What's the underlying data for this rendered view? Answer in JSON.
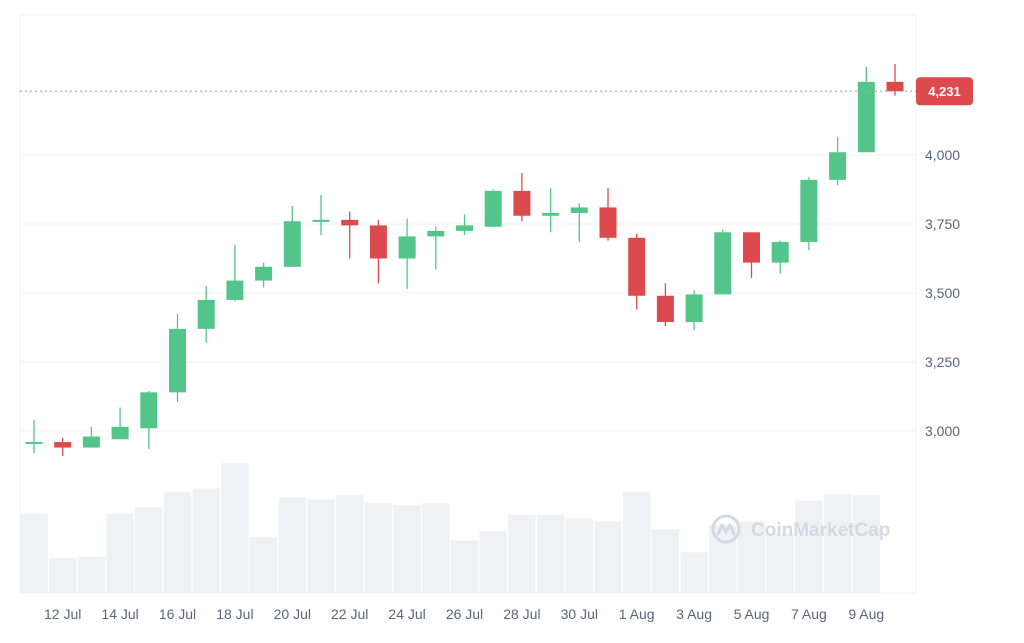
{
  "chart_data": {
    "type": "candlestick",
    "x_tick_labels": [
      "12 Jul",
      "14 Jul",
      "16 Jul",
      "18 Jul",
      "20 Jul",
      "22 Jul",
      "24 Jul",
      "26 Jul",
      "28 Jul",
      "30 Jul",
      "1 Aug",
      "3 Aug",
      "5 Aug",
      "7 Aug",
      "9 Aug"
    ],
    "y_ticks": [
      3000,
      3250,
      3500,
      3750,
      4000
    ],
    "y_tick_labels": [
      "3,000",
      "3,250",
      "3,500",
      "3,750",
      "4,000"
    ],
    "ylim": [
      2800,
      4530
    ],
    "current_price": 4231,
    "current_price_label": "4,231",
    "grid": true,
    "candles": [
      {
        "date": "11 Jul",
        "open": 2955,
        "high": 3040,
        "low": 2920,
        "close": 2960
      },
      {
        "date": "12 Jul",
        "open": 2960,
        "high": 2975,
        "low": 2910,
        "close": 2940
      },
      {
        "date": "13 Jul",
        "open": 2940,
        "high": 3015,
        "low": 2940,
        "close": 2980
      },
      {
        "date": "14 Jul",
        "open": 2970,
        "high": 3085,
        "low": 2970,
        "close": 3015
      },
      {
        "date": "15 Jul",
        "open": 3010,
        "high": 3145,
        "low": 2935,
        "close": 3140
      },
      {
        "date": "16 Jul",
        "open": 3140,
        "high": 3425,
        "low": 3105,
        "close": 3370
      },
      {
        "date": "17 Jul",
        "open": 3370,
        "high": 3525,
        "low": 3320,
        "close": 3475
      },
      {
        "date": "18 Jul",
        "open": 3475,
        "high": 3675,
        "low": 3470,
        "close": 3545
      },
      {
        "date": "19 Jul",
        "open": 3545,
        "high": 3610,
        "low": 3520,
        "close": 3595
      },
      {
        "date": "20 Jul",
        "open": 3595,
        "high": 3815,
        "low": 3595,
        "close": 3760
      },
      {
        "date": "21 Jul",
        "open": 3760,
        "high": 3855,
        "low": 3710,
        "close": 3765
      },
      {
        "date": "22 Jul",
        "open": 3765,
        "high": 3795,
        "low": 3625,
        "close": 3745
      },
      {
        "date": "23 Jul",
        "open": 3745,
        "high": 3765,
        "low": 3535,
        "close": 3625
      },
      {
        "date": "24 Jul",
        "open": 3625,
        "high": 3770,
        "low": 3515,
        "close": 3705
      },
      {
        "date": "25 Jul",
        "open": 3705,
        "high": 3740,
        "low": 3585,
        "close": 3725
      },
      {
        "date": "26 Jul",
        "open": 3725,
        "high": 3785,
        "low": 3710,
        "close": 3745
      },
      {
        "date": "27 Jul",
        "open": 3740,
        "high": 3875,
        "low": 3740,
        "close": 3870
      },
      {
        "date": "28 Jul",
        "open": 3870,
        "high": 3935,
        "low": 3760,
        "close": 3780
      },
      {
        "date": "29 Jul",
        "open": 3780,
        "high": 3880,
        "low": 3720,
        "close": 3790
      },
      {
        "date": "30 Jul",
        "open": 3790,
        "high": 3825,
        "low": 3685,
        "close": 3810
      },
      {
        "date": "31 Jul",
        "open": 3810,
        "high": 3880,
        "low": 3690,
        "close": 3700
      },
      {
        "date": "1 Aug",
        "open": 3700,
        "high": 3715,
        "low": 3440,
        "close": 3490
      },
      {
        "date": "2 Aug",
        "open": 3490,
        "high": 3535,
        "low": 3380,
        "close": 3395
      },
      {
        "date": "3 Aug",
        "open": 3395,
        "high": 3510,
        "low": 3365,
        "close": 3495
      },
      {
        "date": "4 Aug",
        "open": 3495,
        "high": 3730,
        "low": 3495,
        "close": 3720
      },
      {
        "date": "5 Aug",
        "open": 3720,
        "high": 3720,
        "low": 3555,
        "close": 3610
      },
      {
        "date": "6 Aug",
        "open": 3610,
        "high": 3690,
        "low": 3570,
        "close": 3685
      },
      {
        "date": "7 Aug",
        "open": 3685,
        "high": 3920,
        "low": 3655,
        "close": 3910
      },
      {
        "date": "8 Aug",
        "open": 3910,
        "high": 4065,
        "low": 3890,
        "close": 4010
      },
      {
        "date": "9 Aug",
        "open": 4010,
        "high": 4320,
        "low": 4010,
        "close": 4265
      },
      {
        "date": "10 Aug",
        "open": 4265,
        "high": 4330,
        "low": 4215,
        "close": 4231
      }
    ],
    "volume_relative": [
      0.72,
      0.32,
      0.33,
      0.72,
      0.78,
      0.92,
      0.95,
      1.18,
      0.51,
      0.87,
      0.85,
      0.89,
      0.82,
      0.8,
      0.82,
      0.48,
      0.56,
      0.71,
      0.71,
      0.68,
      0.65,
      0.92,
      0.58,
      0.37,
      0.62,
      0.65,
      0.54,
      0.84,
      0.9,
      0.89,
      0.0
    ],
    "colors": {
      "up": "#54c58a",
      "down": "#dc4a4d",
      "volume": "#eff1f4",
      "grid": "#eef0f3",
      "price_line": "#9aa3b0"
    }
  },
  "watermark": {
    "text": "CoinMarketCap",
    "icon": "coinmarketcap-logo-icon"
  }
}
